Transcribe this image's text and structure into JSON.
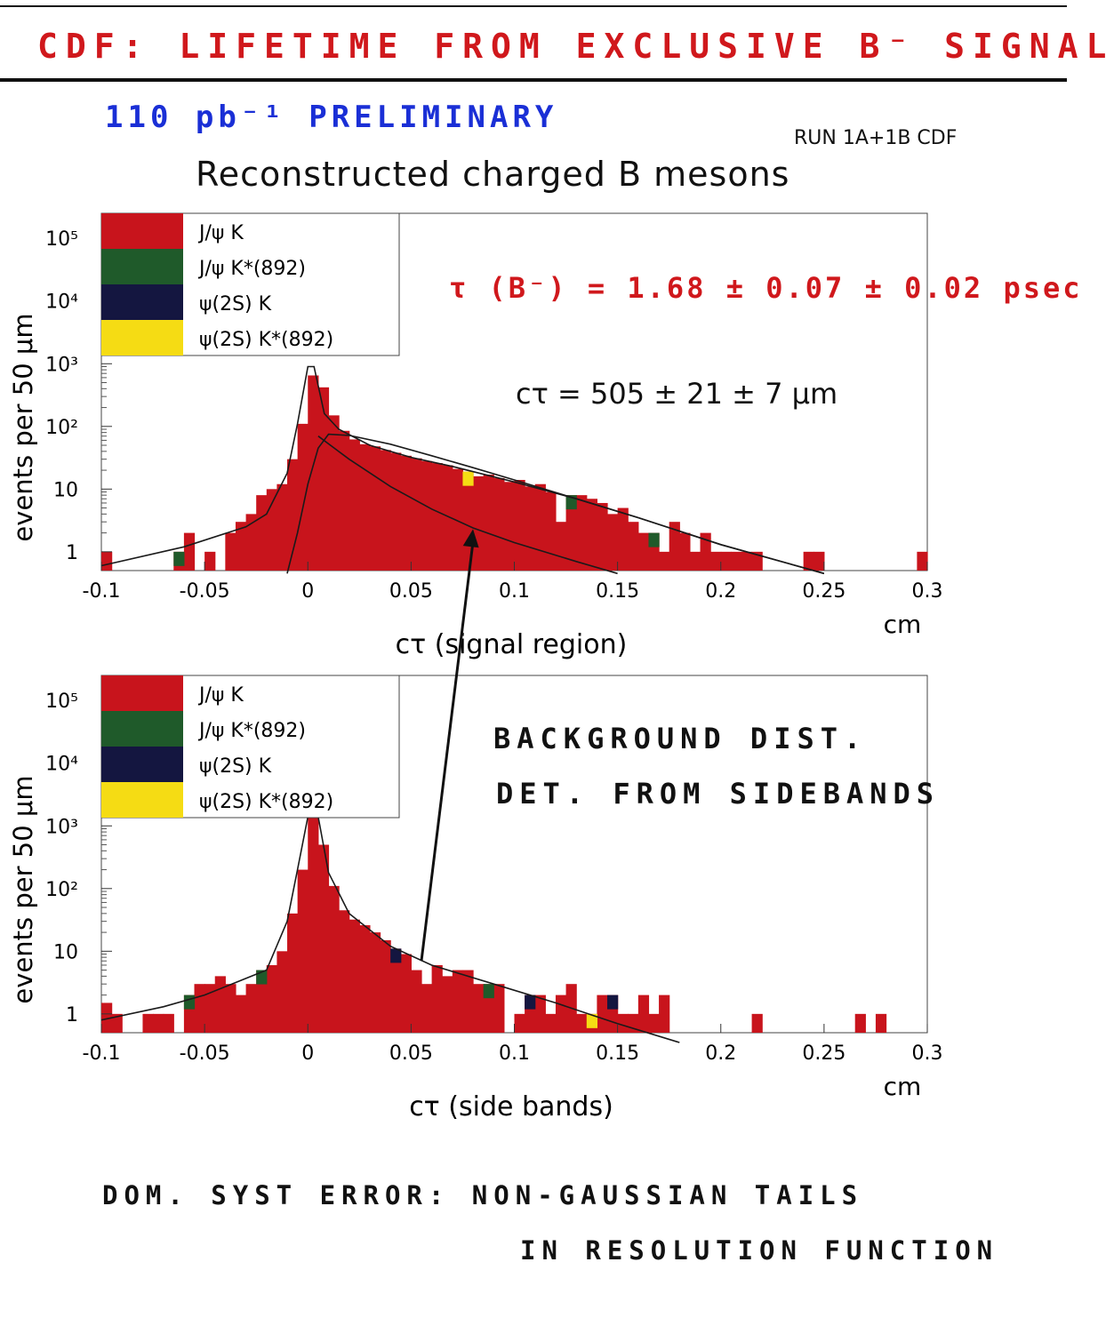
{
  "header": {
    "title": "CDF: LIFETIME FROM EXCLUSIVE B⁻ SIGNAL",
    "lumi_note": "110 pb⁻¹ PRELIMINARY",
    "run_label": "RUN 1A+1B CDF",
    "plot_title": "Reconstructed charged B mesons"
  },
  "annotations": {
    "tau_result": "τ (B⁻) = 1.68 ± 0.07 ± 0.02 psec",
    "ctau_result": "cτ = 505 ± 21 ± 7 μm",
    "background_line1": "BACKGROUND DIST.",
    "background_line2": "DET. FROM SIDEBANDS",
    "syst_line1": "DOM. SYST ERROR:   NON-GAUSSIAN TAILS",
    "syst_line2": "IN RESOLUTION FUNCTION"
  },
  "colors": {
    "jpsi_k": "#c8141c",
    "jpsi_kstar": "#1f5a2a",
    "psi2s_k": "#141640",
    "psi2s_kstar": "#f5dc14"
  },
  "legend": [
    {
      "label": "J/ψ K",
      "color_key": "jpsi_k"
    },
    {
      "label": "J/ψ K*(892)",
      "color_key": "jpsi_kstar"
    },
    {
      "label": "ψ(2S) K",
      "color_key": "psi2s_k"
    },
    {
      "label": "ψ(2S) K*(892)",
      "color_key": "psi2s_kstar"
    }
  ],
  "chart_data": [
    {
      "type": "bar",
      "name": "signal",
      "ylabel": "events per 50 μm",
      "xlabel": "cτ (signal region)",
      "xunit": "cm",
      "xlim": [
        -0.1,
        0.3
      ],
      "ylog": true,
      "x_ticks": [
        "-0.1",
        "-0.05",
        "0",
        "0.05",
        "0.1",
        "0.15",
        "0.2",
        "0.25",
        "0.3"
      ],
      "y_ticks": [
        {
          "v": 1,
          "l": "1"
        },
        {
          "v": 10,
          "l": "10"
        },
        {
          "v": 100,
          "l": "10²"
        },
        {
          "v": 1000,
          "l": "10³"
        },
        {
          "v": 10000,
          "l": "10⁴"
        },
        {
          "v": 100000,
          "l": "10⁵"
        }
      ],
      "bin_width": 0.005,
      "bins": [
        [
          -0.1,
          1
        ],
        [
          -0.065,
          1
        ],
        [
          -0.06,
          2
        ],
        [
          -0.05,
          1
        ],
        [
          -0.04,
          2
        ],
        [
          -0.035,
          3
        ],
        [
          -0.03,
          4
        ],
        [
          -0.025,
          8
        ],
        [
          -0.02,
          10
        ],
        [
          -0.015,
          12
        ],
        [
          -0.01,
          30
        ],
        [
          -0.005,
          110
        ],
        [
          0.0,
          650
        ],
        [
          0.005,
          420
        ],
        [
          0.01,
          150
        ],
        [
          0.015,
          85
        ],
        [
          0.02,
          62
        ],
        [
          0.025,
          52
        ],
        [
          0.03,
          48
        ],
        [
          0.035,
          42
        ],
        [
          0.04,
          38
        ],
        [
          0.045,
          34
        ],
        [
          0.05,
          31
        ],
        [
          0.055,
          28
        ],
        [
          0.06,
          26
        ],
        [
          0.065,
          24
        ],
        [
          0.07,
          21
        ],
        [
          0.075,
          19
        ],
        [
          0.08,
          16
        ],
        [
          0.085,
          17
        ],
        [
          0.09,
          15
        ],
        [
          0.095,
          13
        ],
        [
          0.1,
          14
        ],
        [
          0.105,
          11
        ],
        [
          0.11,
          12
        ],
        [
          0.115,
          9
        ],
        [
          0.12,
          3
        ],
        [
          0.125,
          8
        ],
        [
          0.13,
          8
        ],
        [
          0.135,
          7
        ],
        [
          0.14,
          6
        ],
        [
          0.145,
          4
        ],
        [
          0.15,
          5
        ],
        [
          0.155,
          3
        ],
        [
          0.16,
          2
        ],
        [
          0.165,
          2
        ],
        [
          0.17,
          1
        ],
        [
          0.175,
          3
        ],
        [
          0.18,
          2
        ],
        [
          0.185,
          1
        ],
        [
          0.19,
          2
        ],
        [
          0.195,
          1
        ],
        [
          0.2,
          1
        ],
        [
          0.205,
          1
        ],
        [
          0.21,
          1
        ],
        [
          0.215,
          1
        ],
        [
          0.24,
          1
        ],
        [
          0.245,
          1
        ],
        [
          0.295,
          1
        ]
      ],
      "minor_bins": [
        {
          "x": -0.065,
          "y": 1,
          "color_key": "jpsi_kstar"
        },
        {
          "x": 0.075,
          "y": 19,
          "color_key": "psi2s_kstar"
        },
        {
          "x": 0.125,
          "y": 8,
          "color_key": "jpsi_kstar"
        },
        {
          "x": 0.165,
          "y": 2,
          "color_key": "jpsi_kstar"
        }
      ],
      "fit_total": [
        [
          -0.1,
          0.6
        ],
        [
          -0.06,
          1.2
        ],
        [
          -0.03,
          2.5
        ],
        [
          -0.02,
          4
        ],
        [
          -0.01,
          18
        ],
        [
          -0.005,
          110
        ],
        [
          0.0,
          900
        ],
        [
          0.003,
          900
        ],
        [
          0.008,
          160
        ],
        [
          0.015,
          90
        ],
        [
          0.03,
          50
        ],
        [
          0.05,
          32
        ],
        [
          0.07,
          23
        ],
        [
          0.1,
          13
        ],
        [
          0.13,
          7
        ],
        [
          0.16,
          3.5
        ],
        [
          0.2,
          1.3
        ],
        [
          0.25,
          0.45
        ]
      ],
      "fit_signal": [
        [
          -0.01,
          0.45
        ],
        [
          -0.005,
          2
        ],
        [
          0.0,
          12
        ],
        [
          0.005,
          45
        ],
        [
          0.01,
          75
        ],
        [
          0.02,
          72
        ],
        [
          0.04,
          52
        ],
        [
          0.06,
          34
        ],
        [
          0.08,
          22
        ],
        [
          0.1,
          14
        ],
        [
          0.13,
          7
        ],
        [
          0.16,
          3.5
        ],
        [
          0.2,
          1.3
        ],
        [
          0.25,
          0.45
        ]
      ],
      "fit_background": [
        [
          0.005,
          70
        ],
        [
          0.02,
          30
        ],
        [
          0.04,
          11
        ],
        [
          0.06,
          4.8
        ],
        [
          0.08,
          2.4
        ],
        [
          0.1,
          1.4
        ],
        [
          0.13,
          0.7
        ],
        [
          0.15,
          0.45
        ]
      ],
      "arrow_tip": [
        0.08,
        2.3
      ]
    },
    {
      "type": "bar",
      "name": "sidebands",
      "ylabel": "events per 50 μm",
      "xlabel": "cτ (side bands)",
      "xunit": "cm",
      "xlim": [
        -0.1,
        0.3
      ],
      "ylog": true,
      "x_ticks": [
        "-0.1",
        "-0.05",
        "0",
        "0.05",
        "0.1",
        "0.15",
        "0.2",
        "0.25",
        "0.3"
      ],
      "y_ticks": [
        {
          "v": 1,
          "l": "1"
        },
        {
          "v": 10,
          "l": "10"
        },
        {
          "v": 100,
          "l": "10²"
        },
        {
          "v": 1000,
          "l": "10³"
        },
        {
          "v": 10000,
          "l": "10⁴"
        },
        {
          "v": 100000,
          "l": "10⁵"
        }
      ],
      "bin_width": 0.005,
      "bins": [
        [
          -0.1,
          1.5
        ],
        [
          -0.095,
          1
        ],
        [
          -0.08,
          1
        ],
        [
          -0.075,
          1
        ],
        [
          -0.07,
          1
        ],
        [
          -0.06,
          2
        ],
        [
          -0.055,
          3
        ],
        [
          -0.05,
          3
        ],
        [
          -0.045,
          4
        ],
        [
          -0.04,
          3
        ],
        [
          -0.035,
          2
        ],
        [
          -0.03,
          3
        ],
        [
          -0.025,
          5
        ],
        [
          -0.02,
          6
        ],
        [
          -0.015,
          10
        ],
        [
          -0.01,
          40
        ],
        [
          -0.005,
          200
        ],
        [
          0.0,
          1400
        ],
        [
          0.005,
          500
        ],
        [
          0.01,
          110
        ],
        [
          0.015,
          45
        ],
        [
          0.02,
          32
        ],
        [
          0.025,
          26
        ],
        [
          0.03,
          20
        ],
        [
          0.035,
          15
        ],
        [
          0.04,
          11
        ],
        [
          0.045,
          9
        ],
        [
          0.05,
          5
        ],
        [
          0.055,
          3
        ],
        [
          0.06,
          6
        ],
        [
          0.065,
          4
        ],
        [
          0.07,
          5
        ],
        [
          0.075,
          5
        ],
        [
          0.08,
          3
        ],
        [
          0.085,
          3
        ],
        [
          0.09,
          3
        ],
        [
          0.1,
          1
        ],
        [
          0.105,
          2
        ],
        [
          0.11,
          2
        ],
        [
          0.115,
          1
        ],
        [
          0.12,
          2
        ],
        [
          0.125,
          3
        ],
        [
          0.13,
          1
        ],
        [
          0.135,
          1
        ],
        [
          0.14,
          2
        ],
        [
          0.145,
          2
        ],
        [
          0.15,
          1
        ],
        [
          0.155,
          1
        ],
        [
          0.16,
          2
        ],
        [
          0.165,
          1
        ],
        [
          0.17,
          2
        ],
        [
          0.215,
          1
        ],
        [
          0.265,
          1
        ],
        [
          0.275,
          1
        ]
      ],
      "minor_bins": [
        {
          "x": -0.06,
          "y": 2,
          "color_key": "jpsi_kstar"
        },
        {
          "x": -0.025,
          "y": 5,
          "color_key": "jpsi_kstar"
        },
        {
          "x": 0.04,
          "y": 11,
          "color_key": "psi2s_k"
        },
        {
          "x": 0.085,
          "y": 3,
          "color_key": "jpsi_kstar"
        },
        {
          "x": 0.105,
          "y": 2,
          "color_key": "psi2s_k"
        },
        {
          "x": 0.135,
          "y": 1,
          "color_key": "psi2s_kstar"
        },
        {
          "x": 0.145,
          "y": 2,
          "color_key": "psi2s_k"
        }
      ],
      "fit_total": [
        [
          -0.1,
          0.8
        ],
        [
          -0.07,
          1.3
        ],
        [
          -0.05,
          2
        ],
        [
          -0.02,
          5
        ],
        [
          -0.01,
          30
        ],
        [
          -0.005,
          200
        ],
        [
          0.0,
          1400
        ],
        [
          0.005,
          1400
        ],
        [
          0.01,
          180
        ],
        [
          0.02,
          40
        ],
        [
          0.04,
          12
        ],
        [
          0.06,
          6
        ],
        [
          0.09,
          3
        ],
        [
          0.12,
          1.5
        ],
        [
          0.15,
          0.7
        ],
        [
          0.18,
          0.35
        ]
      ],
      "arrow_tail": [
        0.055,
        7
      ]
    }
  ]
}
